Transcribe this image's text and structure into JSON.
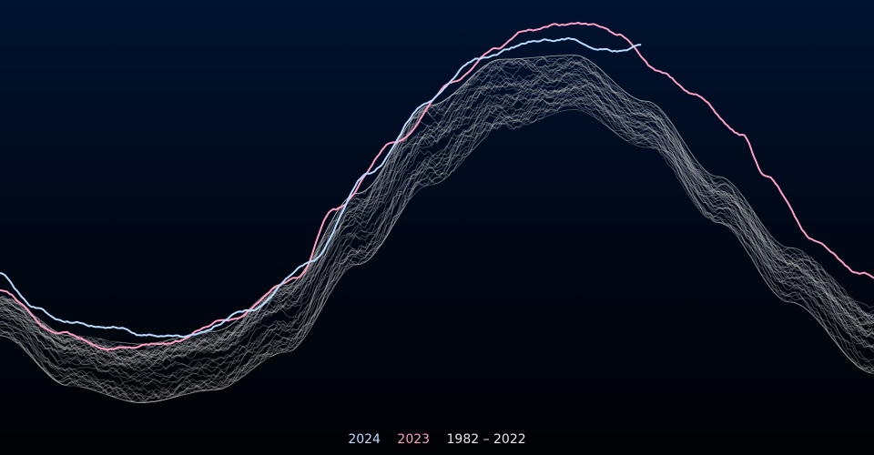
{
  "colors": {
    "highlight_primary": "#bcdcff",
    "highlight_secondary": "#ff9fc2",
    "historical": "#c8c8c8"
  },
  "legend": [
    {
      "label": "2024",
      "color": "#bcdcff"
    },
    {
      "label": "2023",
      "color": "#ff9fc2"
    },
    {
      "label": "1982 – 2022",
      "color": "#e8e8e8"
    }
  ],
  "chart_data": {
    "type": "line",
    "title": "",
    "xlabel": "",
    "ylabel": "",
    "axes_visible": false,
    "grid": false,
    "legend_position": "bottom-center",
    "x": "day of year",
    "xlim": [
      1,
      365
    ],
    "ylim": [
      0,
      100
    ],
    "series": [
      {
        "name": "2024",
        "color": "#bcdcff",
        "points": [
          [
            1,
            37
          ],
          [
            15,
            29
          ],
          [
            28,
            25
          ],
          [
            50,
            24
          ],
          [
            62,
            22
          ],
          [
            80,
            22
          ],
          [
            105,
            28
          ],
          [
            130,
            39
          ],
          [
            155,
            61
          ],
          [
            178,
            77
          ],
          [
            200,
            88
          ],
          [
            228,
            93
          ],
          [
            238,
            93
          ],
          [
            248,
            91
          ],
          [
            262,
            90
          ],
          [
            268,
            91
          ]
        ]
      },
      {
        "name": "2023",
        "color": "#ff9fc2",
        "points": [
          [
            1,
            33
          ],
          [
            25,
            23
          ],
          [
            45,
            19
          ],
          [
            55,
            19
          ],
          [
            70,
            20
          ],
          [
            95,
            26
          ],
          [
            125,
            36
          ],
          [
            140,
            52
          ],
          [
            165,
            68
          ],
          [
            190,
            82
          ],
          [
            208,
            91
          ],
          [
            222,
            95
          ],
          [
            235,
            96
          ],
          [
            248,
            96
          ],
          [
            258,
            94
          ],
          [
            275,
            85
          ],
          [
            290,
            80
          ],
          [
            310,
            70
          ],
          [
            320,
            60
          ],
          [
            340,
            45
          ],
          [
            360,
            37
          ],
          [
            365,
            36
          ]
        ]
      },
      {
        "name": "1982 – 2022",
        "color": "#c8c8c8",
        "count": 41,
        "envelope_low": [
          [
            1,
            22
          ],
          [
            30,
            10
          ],
          [
            60,
            6
          ],
          [
            90,
            9
          ],
          [
            120,
            18
          ],
          [
            150,
            39
          ],
          [
            180,
            58
          ],
          [
            210,
            71
          ],
          [
            240,
            76
          ],
          [
            270,
            67
          ],
          [
            300,
            49
          ],
          [
            330,
            30
          ],
          [
            365,
            13
          ]
        ],
        "envelope_high": [
          [
            1,
            32
          ],
          [
            30,
            22
          ],
          [
            60,
            20
          ],
          [
            90,
            23
          ],
          [
            120,
            34
          ],
          [
            150,
            56
          ],
          [
            180,
            77
          ],
          [
            210,
            88
          ],
          [
            240,
            89
          ],
          [
            270,
            78
          ],
          [
            300,
            60
          ],
          [
            330,
            43
          ],
          [
            365,
            29
          ]
        ]
      }
    ]
  }
}
